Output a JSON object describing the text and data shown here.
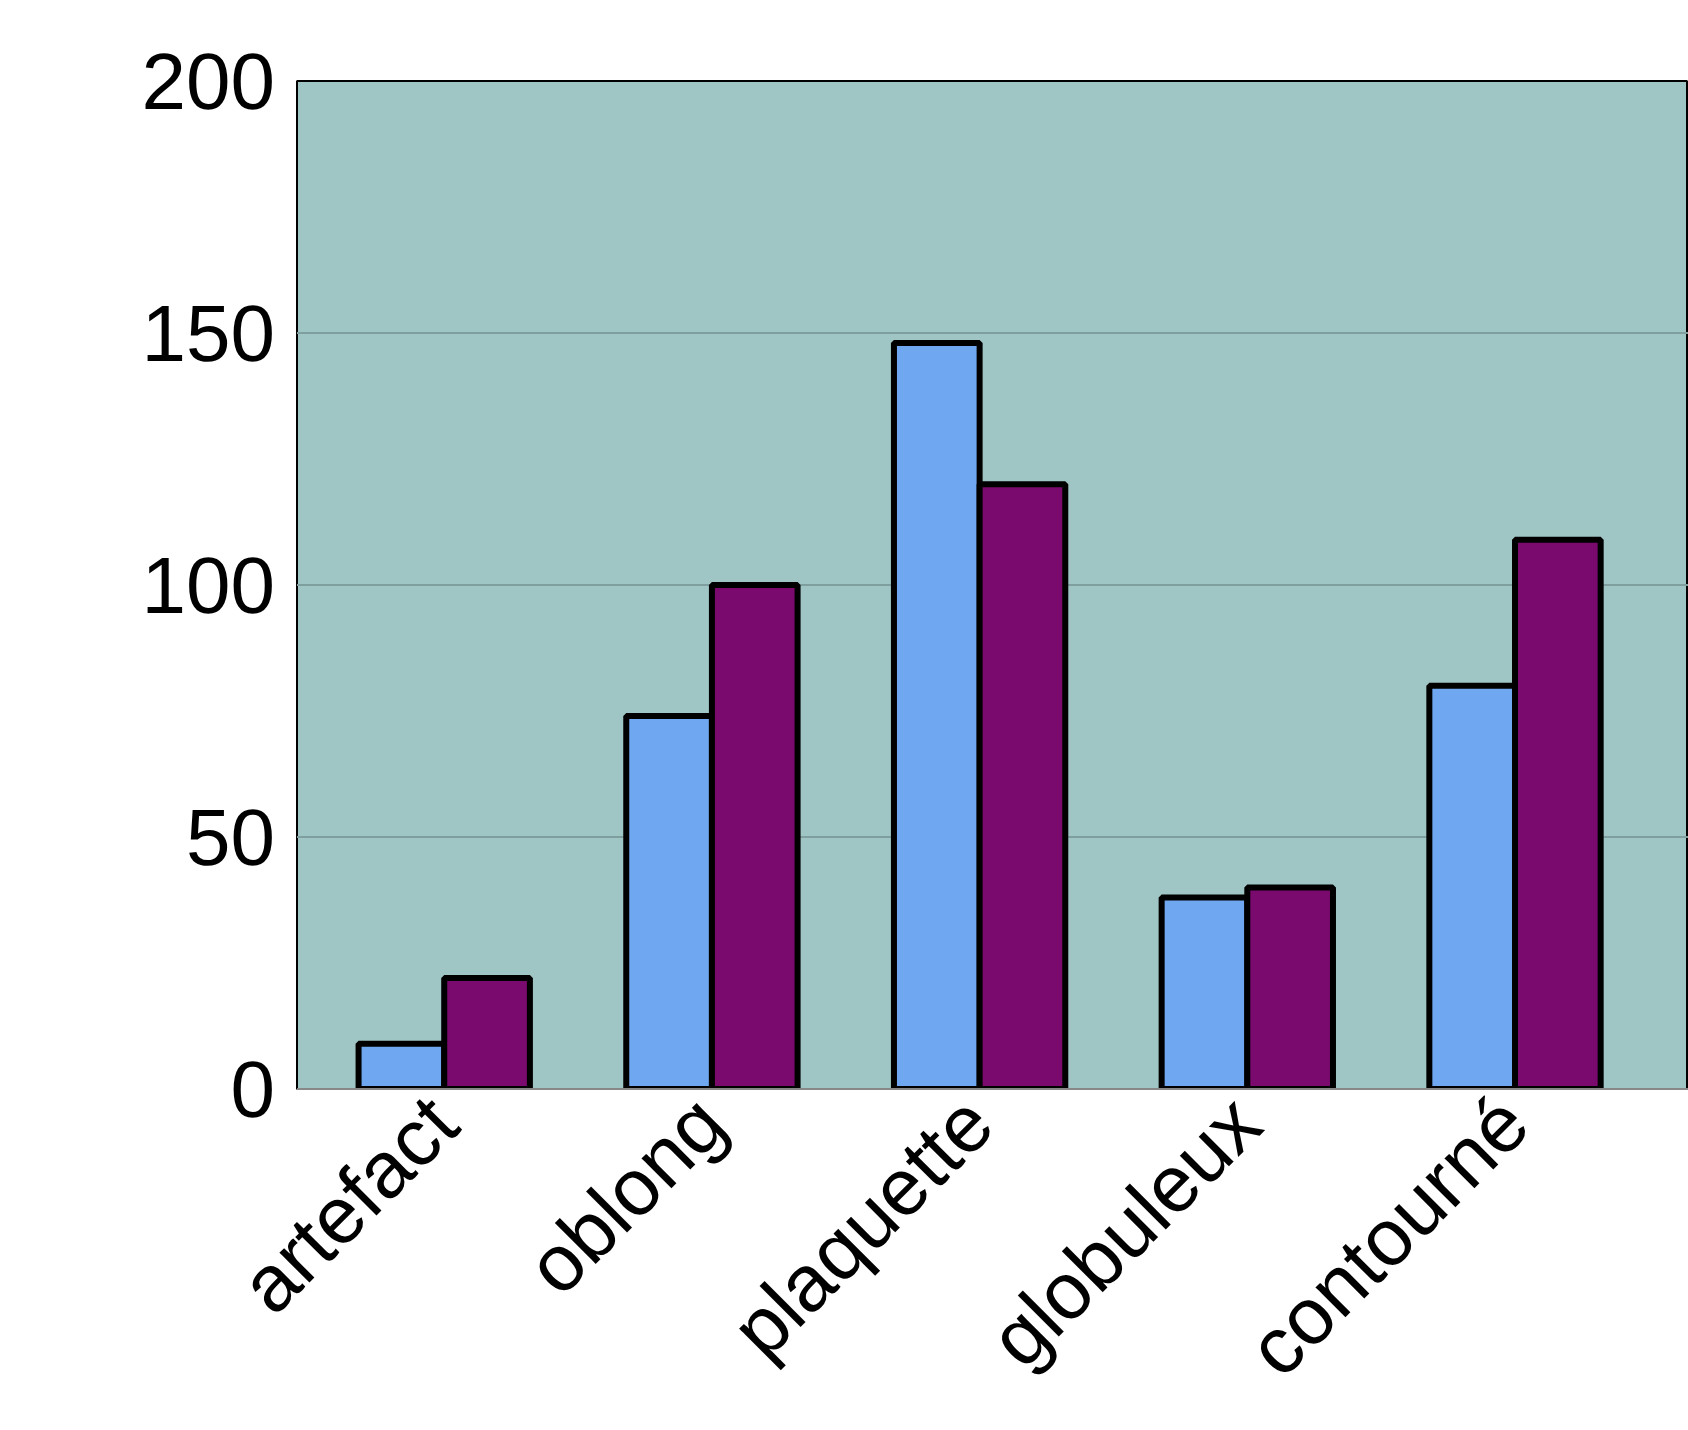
{
  "chart_data": {
    "type": "bar",
    "categories": [
      "artefact",
      "oblong",
      "plaquette",
      "globuleux",
      "contourné"
    ],
    "series": [
      {
        "color": "#6fa8f0",
        "values": [
          9,
          74,
          148,
          38,
          80
        ]
      },
      {
        "color": "#7a0a6e",
        "values": [
          22,
          100,
          120,
          40,
          109
        ]
      }
    ],
    "ylim": [
      0,
      200
    ],
    "yticks": [
      0,
      50,
      100,
      150,
      200
    ],
    "grid": "y"
  }
}
